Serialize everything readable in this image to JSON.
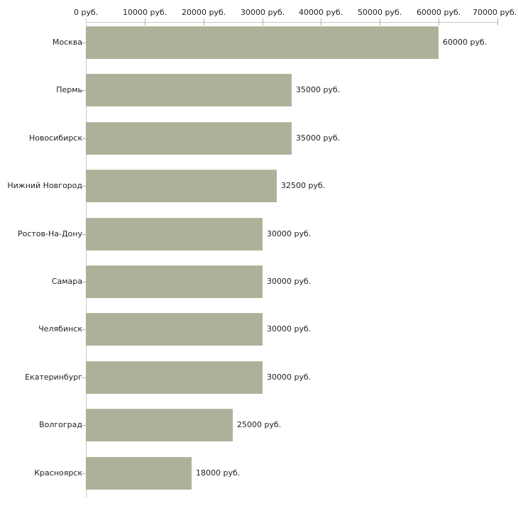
{
  "chart_data": {
    "type": "bar",
    "orientation": "horizontal",
    "title": "",
    "categories": [
      "Москва",
      "Пермь",
      "Новосибирск",
      "Нижний Новгород",
      "Ростов-На-Дону",
      "Самара",
      "Челябинск",
      "Екатеринбург",
      "Волгоград",
      "Красноярск"
    ],
    "values": [
      60000,
      35000,
      35000,
      32500,
      30000,
      30000,
      30000,
      30000,
      25000,
      18000
    ],
    "value_labels": [
      "60000 руб.",
      "35000 руб.",
      "35000 руб.",
      "32500 руб.",
      "30000 руб.",
      "30000 руб.",
      "30000 руб.",
      "30000 руб.",
      "25000 руб.",
      "18000 руб."
    ],
    "x_axis": {
      "position": "top",
      "min": 0,
      "max": 70000,
      "tick_values": [
        0,
        10000,
        20000,
        30000,
        40000,
        50000,
        60000,
        70000
      ],
      "tick_labels": [
        "0 руб.",
        "10000 руб.",
        "20000 руб.",
        "30000 руб.",
        "40000 руб.",
        "50000 руб.",
        "60000 руб.",
        "70000 руб."
      ]
    },
    "grid": false,
    "legend": false,
    "colors": {
      "bar_fill": "#abb299",
      "axis_line": "#c8c8c8",
      "tick_mark": "#b3b488",
      "text": "#222222",
      "background": "#ffffff"
    }
  }
}
